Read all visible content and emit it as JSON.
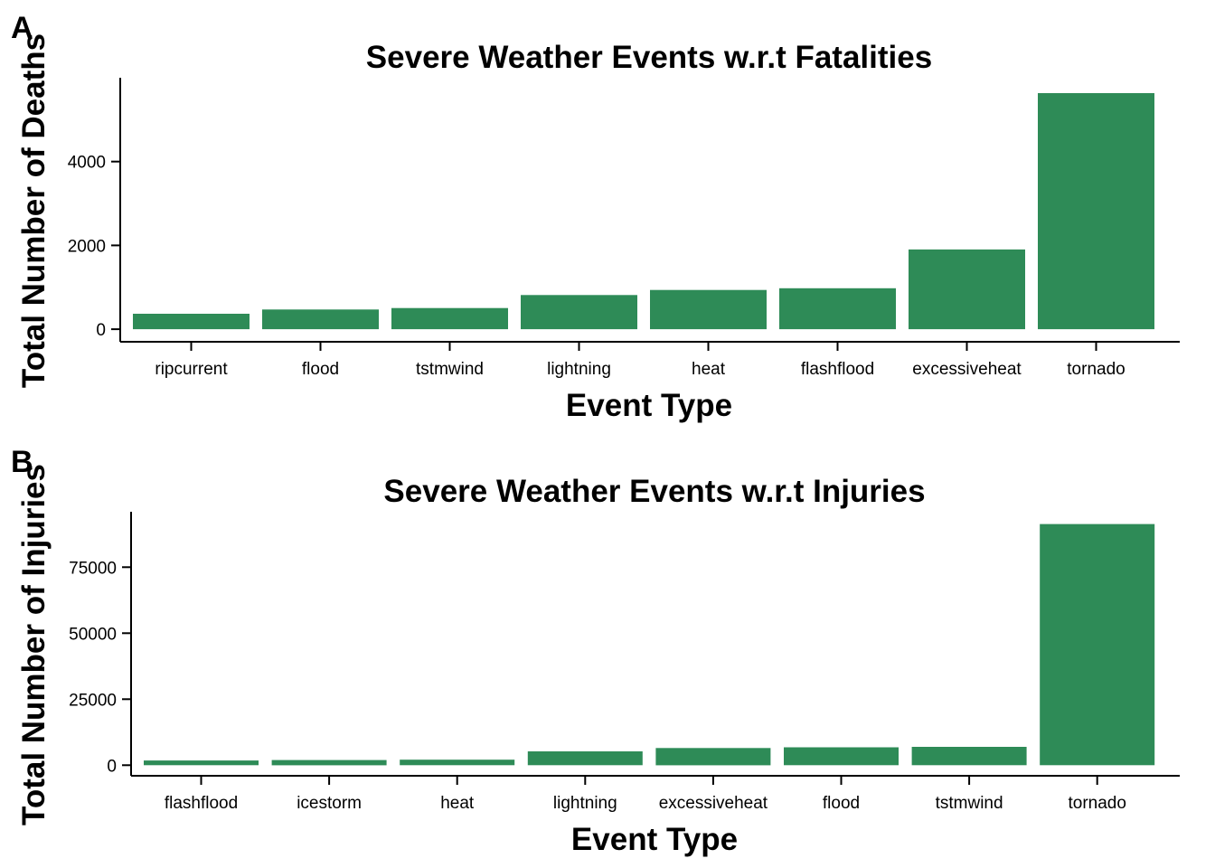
{
  "chart_data": [
    {
      "panel": "A",
      "type": "bar",
      "title": "Severe Weather Events w.r.t Fatalities",
      "xlabel": "Event Type",
      "ylabel": "Total Number of Deaths",
      "categories": [
        "ripcurrent",
        "flood",
        "tstmwind",
        "lightning",
        "heat",
        "flashflood",
        "excessiveheat",
        "tornado"
      ],
      "values": [
        368,
        470,
        504,
        816,
        937,
        978,
        1903,
        5633
      ],
      "yticks": [
        0,
        2000,
        4000
      ],
      "ytick_labels": [
        "0",
        "2000",
        "4000"
      ],
      "ylim": [
        -300,
        6000
      ],
      "bar_color": "#2e8b57",
      "grid": false,
      "legend": "none"
    },
    {
      "panel": "B",
      "type": "bar",
      "title": "Severe Weather Events w.r.t Injuries",
      "xlabel": "Event Type",
      "ylabel": "Total Number of Injuries",
      "categories": [
        "flashflood",
        "icestorm",
        "heat",
        "lightning",
        "excessiveheat",
        "flood",
        "tstmwind",
        "tornado"
      ],
      "values": [
        1777,
        1975,
        2100,
        5230,
        6525,
        6789,
        6957,
        91346
      ],
      "yticks": [
        0,
        25000,
        50000,
        75000
      ],
      "ytick_labels": [
        "0",
        "25000",
        "50000",
        "75000"
      ],
      "ylim": [
        -4000,
        96000
      ],
      "bar_color": "#2e8b57",
      "grid": false,
      "legend": "none"
    }
  ]
}
